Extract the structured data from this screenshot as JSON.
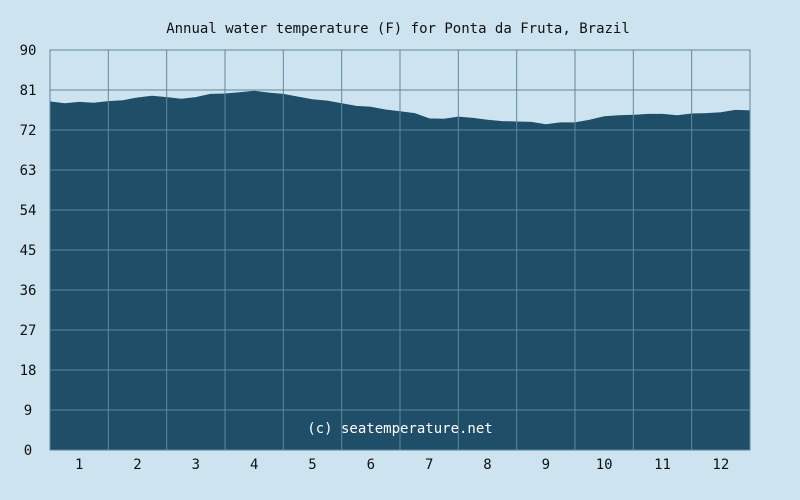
{
  "chart_data": {
    "type": "area",
    "title": "Annual water temperature (F) for Ponta da Fruta, Brazil",
    "xlabel": "",
    "ylabel": "",
    "credit": "(c) seatemperature.net",
    "x_ticks": [
      "1",
      "2",
      "3",
      "4",
      "5",
      "6",
      "7",
      "8",
      "9",
      "10",
      "11",
      "12"
    ],
    "y_ticks": [
      "0",
      "9",
      "18",
      "27",
      "36",
      "45",
      "54",
      "63",
      "72",
      "81",
      "90"
    ],
    "ylim": [
      0,
      90
    ],
    "xlim": [
      0.5,
      12.5
    ],
    "grid": true,
    "colors": {
      "fill": "#1f4e68",
      "grid": "#5e88a0",
      "background": "#cde3ef"
    },
    "x": [
      0.5,
      0.75,
      1.0,
      1.25,
      1.5,
      1.75,
      2.0,
      2.25,
      2.5,
      2.75,
      3.0,
      3.25,
      3.5,
      3.75,
      4.0,
      4.25,
      4.5,
      4.75,
      5.0,
      5.25,
      5.5,
      5.75,
      6.0,
      6.25,
      6.5,
      6.75,
      7.0,
      7.25,
      7.5,
      7.75,
      8.0,
      8.25,
      8.5,
      8.75,
      9.0,
      9.25,
      9.5,
      9.75,
      10.0,
      10.25,
      10.5,
      10.75,
      11.0,
      11.25,
      11.5,
      11.75,
      12.0,
      12.25,
      12.5
    ],
    "series": [
      {
        "values": [
          78.3,
          77.9,
          78.2,
          78.0,
          78.4,
          78.6,
          79.2,
          79.6,
          79.3,
          78.9,
          79.3,
          80.0,
          80.1,
          80.4,
          80.7,
          80.3,
          80.0,
          79.4,
          78.8,
          78.5,
          77.9,
          77.3,
          77.1,
          76.5,
          76.1,
          75.7,
          74.5,
          74.4,
          74.9,
          74.6,
          74.2,
          73.9,
          73.8,
          73.7,
          73.2,
          73.6,
          73.6,
          74.2,
          75.0,
          75.2,
          75.3,
          75.5,
          75.5,
          75.2,
          75.6,
          75.7,
          75.9,
          76.4,
          76.3
        ]
      }
    ]
  }
}
